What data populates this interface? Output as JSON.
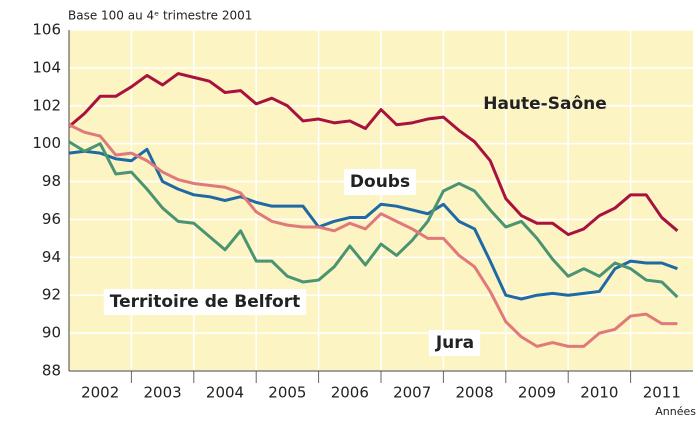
{
  "chart_data": {
    "type": "line",
    "subtitle": "Base 100 au 4ᵉ trimestre 2001",
    "x_label": "Années",
    "x": [
      2002,
      2002.25,
      2002.5,
      2002.75,
      2003,
      2003.25,
      2003.5,
      2003.75,
      2004,
      2004.25,
      2004.5,
      2004.75,
      2005,
      2005.25,
      2005.5,
      2005.75,
      2006,
      2006.25,
      2006.5,
      2006.75,
      2007,
      2007.25,
      2007.5,
      2007.75,
      2008,
      2008.25,
      2008.5,
      2008.75,
      2009,
      2009.25,
      2009.5,
      2009.75,
      2010,
      2010.25,
      2010.5,
      2010.75,
      2011,
      2011.25,
      2011.5,
      2011.75
    ],
    "series": [
      {
        "name": "Haute-Saône",
        "color": "#a8123f",
        "values": [
          100.9,
          101.6,
          102.5,
          102.5,
          103.0,
          103.6,
          103.1,
          103.7,
          103.5,
          103.3,
          102.7,
          102.8,
          102.1,
          102.4,
          102.0,
          101.2,
          101.3,
          101.1,
          101.2,
          100.8,
          101.8,
          101.0,
          101.1,
          101.3,
          101.4,
          100.7,
          100.1,
          99.1,
          97.1,
          96.2,
          95.8,
          95.8,
          95.2,
          95.5,
          96.2,
          96.6,
          97.3,
          97.3,
          96.1,
          95.4
        ]
      },
      {
        "name": "Doubs",
        "color": "#1f6aa5",
        "values": [
          99.5,
          99.6,
          99.5,
          99.2,
          99.1,
          99.7,
          98.0,
          97.6,
          97.3,
          97.2,
          97.0,
          97.2,
          96.9,
          96.7,
          96.7,
          96.7,
          95.6,
          95.9,
          96.1,
          96.1,
          96.8,
          96.7,
          96.5,
          96.3,
          96.8,
          95.9,
          95.5,
          93.8,
          92.0,
          91.8,
          92.0,
          92.1,
          92.0,
          92.1,
          92.2,
          93.4,
          93.8,
          93.7,
          93.7,
          93.4
        ]
      },
      {
        "name": "Territoire de Belfort",
        "color": "#4a9472",
        "values": [
          100.1,
          99.6,
          100.0,
          98.4,
          98.5,
          97.6,
          96.6,
          95.9,
          95.8,
          95.1,
          94.4,
          95.4,
          93.8,
          93.8,
          93.0,
          92.7,
          92.8,
          93.5,
          94.6,
          93.6,
          94.7,
          94.1,
          94.9,
          95.9,
          97.5,
          97.9,
          97.5,
          96.5,
          95.6,
          95.9,
          95.0,
          93.9,
          93.0,
          93.4,
          93.0,
          93.7,
          93.4,
          92.8,
          92.7,
          91.9
        ]
      },
      {
        "name": "Jura",
        "color": "#e07a7a",
        "values": [
          101.0,
          100.6,
          100.4,
          99.4,
          99.5,
          99.1,
          98.5,
          98.1,
          97.9,
          97.8,
          97.7,
          97.4,
          96.4,
          95.9,
          95.7,
          95.6,
          95.6,
          95.4,
          95.8,
          95.5,
          96.3,
          95.9,
          95.5,
          95.0,
          95.0,
          94.1,
          93.5,
          92.2,
          90.6,
          89.8,
          89.3,
          89.5,
          89.3,
          89.3,
          90.0,
          90.2,
          90.9,
          91.0,
          90.5,
          90.5
        ]
      }
    ],
    "xlim": [
      2002,
      2012
    ],
    "xticks": [
      {
        "value": 2002.5,
        "label": "2002"
      },
      {
        "value": 2003.5,
        "label": "2003"
      },
      {
        "value": 2004.5,
        "label": "2004"
      },
      {
        "value": 2005.5,
        "label": "2005"
      },
      {
        "value": 2006.5,
        "label": "2006"
      },
      {
        "value": 2007.5,
        "label": "2007"
      },
      {
        "value": 2008.5,
        "label": "2008"
      },
      {
        "value": 2009.5,
        "label": "2009"
      },
      {
        "value": 2010.5,
        "label": "2010"
      },
      {
        "value": 2011.5,
        "label": "2011"
      }
    ],
    "xgrid": [
      2003,
      2004,
      2005,
      2006,
      2007,
      2008,
      2009,
      2010,
      2011
    ],
    "ylim": [
      88,
      106
    ],
    "yticks": [
      88,
      90,
      92,
      94,
      96,
      98,
      100,
      102,
      104,
      106
    ],
    "grid": true,
    "background": "#fdf4c3"
  }
}
